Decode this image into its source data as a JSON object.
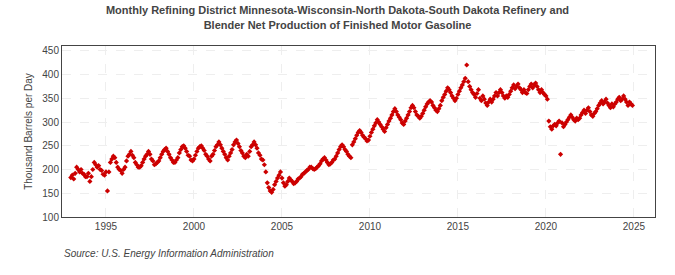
{
  "chart_data": {
    "type": "scatter",
    "title": "Monthly Refining District Minnesota-Wisconsin-North Dakota-South Dakota Refinery and\nBlender Net Production of Finished Motor Gasoline",
    "y_label": "Thousand Barrels per Day",
    "annotations": [
      "Source: U.S. Energy Information Administration"
    ],
    "color": "#cc0000",
    "marker": "diamond",
    "grid": true,
    "xlim": [
      1992.5,
      2026.2
    ],
    "ylim": [
      100,
      460
    ],
    "xticks": [
      1995,
      2000,
      2005,
      2010,
      2015,
      2020,
      2025
    ],
    "yticks": [
      100,
      150,
      200,
      250,
      300,
      350,
      400,
      450
    ],
    "x": [
      1993.0,
      1993.083,
      1993.167,
      1993.25,
      1993.333,
      1993.417,
      1993.5,
      1993.583,
      1993.667,
      1993.75,
      1993.833,
      1993.917,
      1994.0,
      1994.083,
      1994.167,
      1994.25,
      1994.333,
      1994.417,
      1994.5,
      1994.583,
      1994.667,
      1994.75,
      1994.833,
      1994.917,
      1995.0,
      1995.083,
      1995.167,
      1995.25,
      1995.333,
      1995.417,
      1995.5,
      1995.583,
      1995.667,
      1995.75,
      1995.833,
      1995.917,
      1996.0,
      1996.083,
      1996.167,
      1996.25,
      1996.333,
      1996.417,
      1996.5,
      1996.583,
      1996.667,
      1996.75,
      1996.833,
      1996.917,
      1997.0,
      1997.083,
      1997.167,
      1997.25,
      1997.333,
      1997.417,
      1997.5,
      1997.583,
      1997.667,
      1997.75,
      1997.833,
      1997.917,
      1998.0,
      1998.083,
      1998.167,
      1998.25,
      1998.333,
      1998.417,
      1998.5,
      1998.583,
      1998.667,
      1998.75,
      1998.833,
      1998.917,
      1999.0,
      1999.083,
      1999.167,
      1999.25,
      1999.333,
      1999.417,
      1999.5,
      1999.583,
      1999.667,
      1999.75,
      1999.833,
      1999.917,
      2000.0,
      2000.083,
      2000.167,
      2000.25,
      2000.333,
      2000.417,
      2000.5,
      2000.583,
      2000.667,
      2000.75,
      2000.833,
      2000.917,
      2001.0,
      2001.083,
      2001.167,
      2001.25,
      2001.333,
      2001.417,
      2001.5,
      2001.583,
      2001.667,
      2001.75,
      2001.833,
      2001.917,
      2002.0,
      2002.083,
      2002.167,
      2002.25,
      2002.333,
      2002.417,
      2002.5,
      2002.583,
      2002.667,
      2002.75,
      2002.833,
      2002.917,
      2003.0,
      2003.083,
      2003.167,
      2003.25,
      2003.333,
      2003.417,
      2003.5,
      2003.583,
      2003.667,
      2003.75,
      2003.833,
      2003.917,
      2004.0,
      2004.083,
      2004.167,
      2004.25,
      2004.333,
      2004.417,
      2004.5,
      2004.583,
      2004.667,
      2004.75,
      2004.833,
      2004.917,
      2005.0,
      2005.083,
      2005.167,
      2005.25,
      2005.333,
      2005.417,
      2005.5,
      2005.583,
      2005.667,
      2005.75,
      2005.833,
      2005.917,
      2006.0,
      2006.083,
      2006.167,
      2006.25,
      2006.333,
      2006.417,
      2006.5,
      2006.583,
      2006.667,
      2006.75,
      2006.833,
      2006.917,
      2007.0,
      2007.083,
      2007.167,
      2007.25,
      2007.333,
      2007.417,
      2007.5,
      2007.583,
      2007.667,
      2007.75,
      2007.833,
      2007.917,
      2008.0,
      2008.083,
      2008.167,
      2008.25,
      2008.333,
      2008.417,
      2008.5,
      2008.583,
      2008.667,
      2008.75,
      2008.833,
      2008.917,
      2009.0,
      2009.083,
      2009.167,
      2009.25,
      2009.333,
      2009.417,
      2009.5,
      2009.583,
      2009.667,
      2009.75,
      2009.833,
      2009.917,
      2010.0,
      2010.083,
      2010.167,
      2010.25,
      2010.333,
      2010.417,
      2010.5,
      2010.583,
      2010.667,
      2010.75,
      2010.833,
      2010.917,
      2011.0,
      2011.083,
      2011.167,
      2011.25,
      2011.333,
      2011.417,
      2011.5,
      2011.583,
      2011.667,
      2011.75,
      2011.833,
      2011.917,
      2012.0,
      2012.083,
      2012.167,
      2012.25,
      2012.333,
      2012.417,
      2012.5,
      2012.583,
      2012.667,
      2012.75,
      2012.833,
      2012.917,
      2013.0,
      2013.083,
      2013.167,
      2013.25,
      2013.333,
      2013.417,
      2013.5,
      2013.583,
      2013.667,
      2013.75,
      2013.833,
      2013.917,
      2014.0,
      2014.083,
      2014.167,
      2014.25,
      2014.333,
      2014.417,
      2014.5,
      2014.583,
      2014.667,
      2014.75,
      2014.833,
      2014.917,
      2015.0,
      2015.083,
      2015.167,
      2015.25,
      2015.333,
      2015.417,
      2015.5,
      2015.583,
      2015.667,
      2015.75,
      2015.833,
      2015.917,
      2016.0,
      2016.083,
      2016.167,
      2016.25,
      2016.333,
      2016.417,
      2016.5,
      2016.583,
      2016.667,
      2016.75,
      2016.833,
      2016.917,
      2017.0,
      2017.083,
      2017.167,
      2017.25,
      2017.333,
      2017.417,
      2017.5,
      2017.583,
      2017.667,
      2017.75,
      2017.833,
      2017.917,
      2018.0,
      2018.083,
      2018.167,
      2018.25,
      2018.333,
      2018.417,
      2018.5,
      2018.583,
      2018.667,
      2018.75,
      2018.833,
      2018.917,
      2019.0,
      2019.083,
      2019.167,
      2019.25,
      2019.333,
      2019.417,
      2019.5,
      2019.583,
      2019.667,
      2019.75,
      2019.833,
      2019.917,
      2020.0,
      2020.083,
      2020.167,
      2020.25,
      2020.333,
      2020.417,
      2020.5,
      2020.583,
      2020.667,
      2020.75,
      2020.833,
      2020.917,
      2021.0,
      2021.083,
      2021.167,
      2021.25,
      2021.333,
      2021.417,
      2021.5,
      2021.583,
      2021.667,
      2021.75,
      2021.833,
      2021.917,
      2022.0,
      2022.083,
      2022.167,
      2022.25,
      2022.333,
      2022.417,
      2022.5,
      2022.583,
      2022.667,
      2022.75,
      2022.833,
      2022.917,
      2023.0,
      2023.083,
      2023.167,
      2023.25,
      2023.333,
      2023.417,
      2023.5,
      2023.583,
      2023.667,
      2023.75,
      2023.833,
      2023.917,
      2024.0,
      2024.083,
      2024.167,
      2024.25,
      2024.333,
      2024.417,
      2024.5,
      2024.583,
      2024.667,
      2024.75,
      2024.833,
      2024.917
    ],
    "values": [
      183,
      188,
      180,
      192,
      205,
      200,
      195,
      200,
      192,
      190,
      185,
      185,
      192,
      175,
      185,
      200,
      215,
      210,
      205,
      208,
      200,
      198,
      190,
      188,
      195,
      155,
      195,
      215,
      222,
      228,
      225,
      215,
      205,
      200,
      198,
      192,
      200,
      205,
      218,
      228,
      232,
      238,
      230,
      225,
      215,
      210,
      205,
      205,
      208,
      215,
      222,
      228,
      232,
      238,
      232,
      222,
      218,
      210,
      212,
      215,
      218,
      225,
      232,
      238,
      242,
      245,
      238,
      232,
      225,
      220,
      215,
      215,
      220,
      225,
      235,
      242,
      248,
      250,
      245,
      238,
      230,
      228,
      220,
      218,
      222,
      230,
      238,
      245,
      248,
      250,
      245,
      240,
      232,
      228,
      222,
      218,
      228,
      232,
      240,
      248,
      252,
      258,
      252,
      245,
      238,
      232,
      225,
      220,
      228,
      235,
      242,
      252,
      258,
      262,
      255,
      248,
      240,
      235,
      228,
      225,
      232,
      228,
      238,
      248,
      252,
      258,
      252,
      245,
      235,
      230,
      222,
      220,
      210,
      195,
      172,
      162,
      155,
      152,
      158,
      168,
      175,
      182,
      188,
      195,
      182,
      172,
      165,
      168,
      175,
      182,
      178,
      175,
      170,
      172,
      175,
      180,
      182,
      185,
      190,
      192,
      195,
      198,
      200,
      205,
      205,
      202,
      200,
      202,
      205,
      208,
      212,
      218,
      222,
      225,
      220,
      215,
      210,
      212,
      215,
      220,
      222,
      228,
      235,
      242,
      248,
      252,
      248,
      242,
      238,
      232,
      228,
      225,
      252,
      258,
      265,
      272,
      278,
      282,
      278,
      272,
      268,
      265,
      260,
      262,
      270,
      278,
      285,
      292,
      298,
      305,
      300,
      295,
      290,
      285,
      280,
      288,
      295,
      302,
      308,
      315,
      322,
      328,
      322,
      315,
      310,
      305,
      298,
      295,
      302,
      308,
      315,
      322,
      330,
      335,
      330,
      322,
      315,
      312,
      308,
      312,
      318,
      325,
      332,
      338,
      342,
      345,
      342,
      335,
      330,
      325,
      322,
      328,
      335,
      345,
      352,
      358,
      365,
      372,
      368,
      362,
      355,
      350,
      345,
      350,
      358,
      365,
      372,
      378,
      385,
      392,
      420,
      385,
      375,
      368,
      362,
      358,
      352,
      360,
      368,
      350,
      345,
      355,
      348,
      340,
      335,
      342,
      348,
      342,
      348,
      355,
      362,
      355,
      362,
      368,
      362,
      355,
      350,
      355,
      352,
      358,
      365,
      372,
      378,
      370,
      375,
      380,
      372,
      368,
      362,
      368,
      362,
      360,
      368,
      375,
      380,
      372,
      378,
      382,
      375,
      368,
      362,
      368,
      362,
      358,
      355,
      348,
      302,
      290,
      285,
      292,
      295,
      292,
      298,
      302,
      232,
      298,
      290,
      295,
      300,
      305,
      310,
      315,
      310,
      305,
      302,
      308,
      305,
      308,
      315,
      320,
      325,
      318,
      325,
      330,
      322,
      315,
      312,
      318,
      322,
      328,
      335,
      340,
      345,
      338,
      342,
      348,
      340,
      335,
      330,
      338,
      332,
      338,
      342,
      348,
      352,
      345,
      348,
      355,
      348,
      342,
      335,
      342,
      338,
      335
    ]
  }
}
